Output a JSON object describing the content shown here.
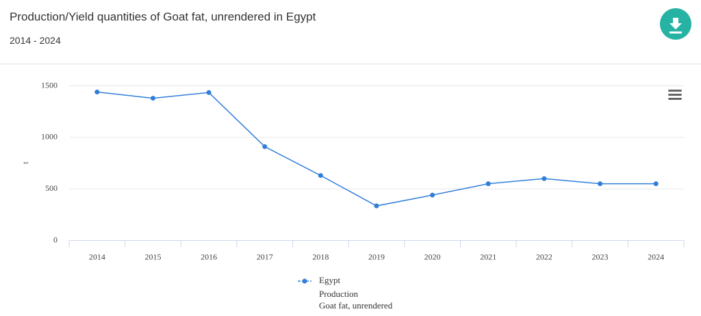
{
  "chart_data": {
    "type": "line",
    "title": "Production/Yield quantities of Goat fat, unrendered in Egypt",
    "subtitle": "2014 - 2024",
    "y_axis_label": "t",
    "categories": [
      "2014",
      "2015",
      "2016",
      "2017",
      "2018",
      "2019",
      "2020",
      "2021",
      "2022",
      "2023",
      "2024"
    ],
    "series": [
      {
        "name": "Egypt",
        "element": "Production",
        "item": "Goat fat, unrendered",
        "color": "#2f7ed8",
        "values": [
          1440,
          1380,
          1435,
          910,
          630,
          335,
          440,
          550,
          600,
          550,
          550
        ]
      }
    ],
    "ylim": [
      0,
      1500
    ],
    "yticks": [
      0,
      500,
      1000,
      1500
    ],
    "grid": true
  }
}
